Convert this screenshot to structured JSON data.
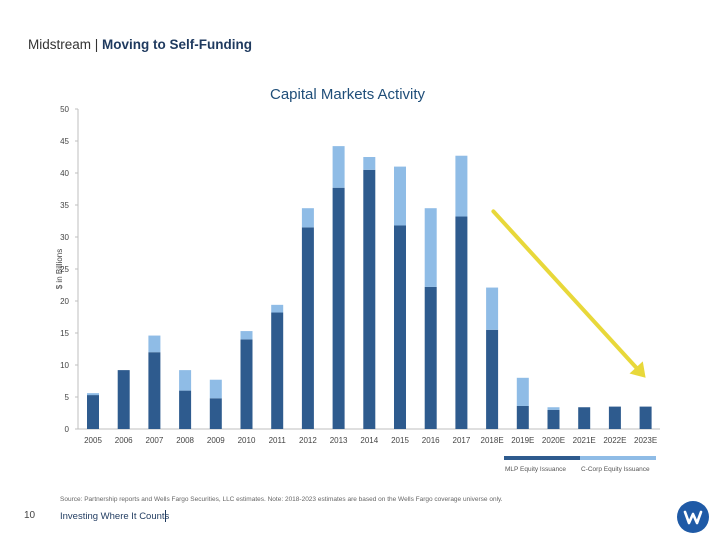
{
  "header": {
    "section": "Midstream | ",
    "title": "Moving to Self-Funding"
  },
  "chart_data": {
    "type": "bar",
    "stacked": true,
    "title": "Capital Markets Activity",
    "ylabel": "$ in Billions",
    "xlabel": "",
    "ylim": [
      0,
      50
    ],
    "yticks": [
      0,
      5,
      10,
      15,
      20,
      25,
      30,
      35,
      40,
      45,
      50
    ],
    "categories": [
      "2005",
      "2006",
      "2007",
      "2008",
      "2009",
      "2010",
      "2011",
      "2012",
      "2013",
      "2014",
      "2015",
      "2016",
      "2017",
      "2018E",
      "2019E",
      "2020E",
      "2021E",
      "2022E",
      "2023E"
    ],
    "series": [
      {
        "name": "MLP Equity Issuance",
        "color": "#2e5b8e",
        "values": [
          5.3,
          9.2,
          12.0,
          6.0,
          4.8,
          14.0,
          18.2,
          31.5,
          37.7,
          40.5,
          31.8,
          22.2,
          33.2,
          15.5,
          3.6,
          3.0,
          3.4,
          3.5,
          3.5
        ]
      },
      {
        "name": "C-Corp Equity Issuance",
        "color": "#8fbce6",
        "values": [
          0.3,
          0.0,
          2.6,
          3.2,
          2.9,
          1.3,
          1.2,
          3.0,
          6.5,
          2.0,
          9.2,
          12.3,
          9.5,
          6.6,
          4.4,
          0.4,
          0.0,
          0.0,
          0.0
        ]
      }
    ],
    "annotation": {
      "type": "trend-arrow",
      "color": "#e8d83a",
      "from_category": "2017",
      "from_value": 34,
      "to_category": "2023E",
      "to_value": 8
    }
  },
  "legend": {
    "mlp": "MLP Equity Issuance",
    "ccorp": "C-Corp Equity Issuance",
    "mlp_color": "#2e5b8e",
    "ccorp_color": "#8fbce6"
  },
  "footer": {
    "source": "Source: Partnership reports and Wells Fargo Securities, LLC estimates. Note: 2018-2023 estimates are based on the Wells Fargo coverage universe only.",
    "page": "10",
    "tagline": "Investing Where It Counts"
  }
}
